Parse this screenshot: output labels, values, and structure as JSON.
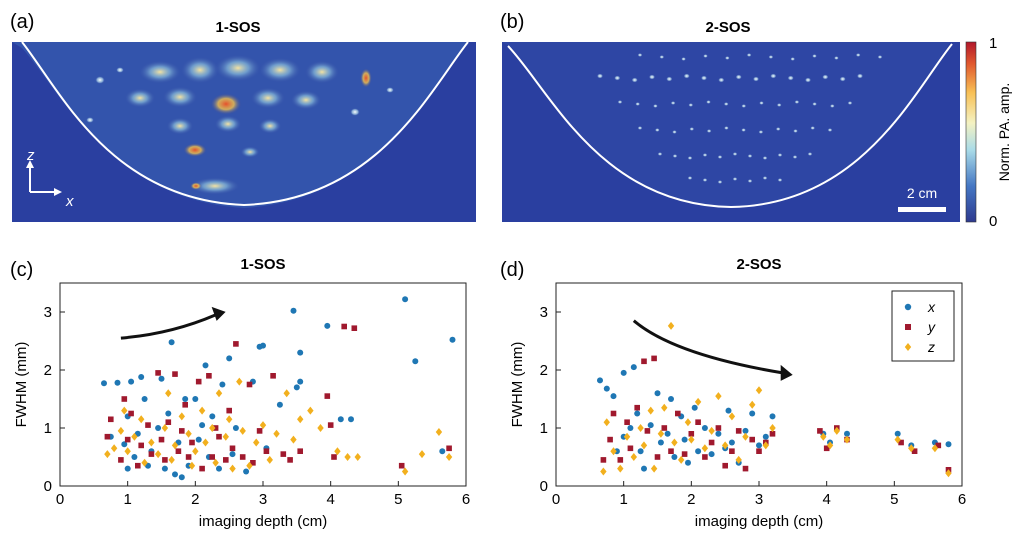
{
  "images": {
    "panel_a": {
      "letter": "(a)",
      "title": "1-SOS"
    },
    "panel_b": {
      "letter": "(b)",
      "title": "2-SOS"
    },
    "direction_z": "z",
    "direction_x": "x",
    "scalebar_label": "2 cm",
    "colorbar": {
      "label": "Norm. PA. amp.",
      "max_label": "1",
      "min_label": "0"
    }
  },
  "colors": {
    "x": "#1f77b4",
    "y": "#a0192e",
    "z": "#f2b01e",
    "bg": "#2a3fa0",
    "boundary": "#ffffff"
  },
  "chart_data": [
    {
      "panel": "(c)",
      "type": "scatter",
      "title": "1-SOS",
      "xlabel": "imaging depth (cm)",
      "ylabel": "FWHM (mm)",
      "xlim": [
        0,
        6
      ],
      "ylim": [
        0,
        3.5
      ],
      "xticks": [
        "0",
        "1",
        "2",
        "3",
        "4",
        "5",
        "6"
      ],
      "yticks": [
        "0",
        "1",
        "2",
        "3"
      ],
      "series": [
        {
          "name": "x",
          "marker": "circle",
          "points": [
            [
              0.65,
              1.77
            ],
            [
              0.75,
              0.85
            ],
            [
              0.85,
              1.78
            ],
            [
              0.95,
              0.72
            ],
            [
              1.0,
              1.2
            ],
            [
              1.0,
              0.3
            ],
            [
              1.05,
              1.8
            ],
            [
              1.1,
              0.5
            ],
            [
              1.15,
              0.9
            ],
            [
              1.2,
              1.88
            ],
            [
              1.25,
              1.5
            ],
            [
              1.3,
              0.35
            ],
            [
              1.35,
              0.6
            ],
            [
              1.45,
              1.0
            ],
            [
              1.5,
              1.85
            ],
            [
              1.55,
              0.3
            ],
            [
              1.6,
              1.25
            ],
            [
              1.65,
              2.48
            ],
            [
              1.7,
              0.2
            ],
            [
              1.75,
              0.75
            ],
            [
              1.8,
              0.15
            ],
            [
              1.85,
              1.5
            ],
            [
              1.9,
              0.35
            ],
            [
              2.0,
              1.5
            ],
            [
              2.05,
              0.8
            ],
            [
              2.1,
              1.05
            ],
            [
              2.15,
              2.08
            ],
            [
              2.2,
              0.5
            ],
            [
              2.25,
              1.2
            ],
            [
              2.35,
              0.3
            ],
            [
              2.4,
              1.75
            ],
            [
              2.5,
              2.2
            ],
            [
              2.55,
              0.55
            ],
            [
              2.6,
              1.0
            ],
            [
              2.75,
              0.25
            ],
            [
              2.85,
              1.8
            ],
            [
              2.95,
              2.4
            ],
            [
              3.0,
              2.42
            ],
            [
              3.05,
              0.65
            ],
            [
              3.25,
              1.4
            ],
            [
              3.45,
              3.02
            ],
            [
              3.5,
              1.7
            ],
            [
              3.55,
              2.3
            ],
            [
              3.55,
              1.8
            ],
            [
              3.95,
              2.76
            ],
            [
              4.15,
              1.15
            ],
            [
              4.3,
              1.15
            ],
            [
              5.1,
              3.22
            ],
            [
              5.25,
              2.15
            ],
            [
              5.8,
              2.52
            ],
            [
              5.65,
              0.6
            ]
          ]
        },
        {
          "name": "y",
          "marker": "square",
          "points": [
            [
              0.7,
              0.85
            ],
            [
              0.75,
              1.15
            ],
            [
              0.9,
              0.45
            ],
            [
              0.95,
              1.5
            ],
            [
              1.0,
              0.8
            ],
            [
              1.05,
              1.25
            ],
            [
              1.15,
              0.35
            ],
            [
              1.2,
              0.7
            ],
            [
              1.3,
              1.05
            ],
            [
              1.35,
              0.55
            ],
            [
              1.45,
              1.95
            ],
            [
              1.5,
              0.8
            ],
            [
              1.55,
              0.45
            ],
            [
              1.6,
              1.1
            ],
            [
              1.7,
              1.93
            ],
            [
              1.75,
              0.6
            ],
            [
              1.8,
              0.95
            ],
            [
              1.85,
              1.4
            ],
            [
              1.9,
              0.5
            ],
            [
              1.95,
              0.75
            ],
            [
              2.05,
              1.8
            ],
            [
              2.1,
              0.3
            ],
            [
              2.2,
              1.9
            ],
            [
              2.25,
              0.5
            ],
            [
              2.3,
              1.0
            ],
            [
              2.35,
              0.85
            ],
            [
              2.45,
              0.45
            ],
            [
              2.5,
              1.3
            ],
            [
              2.55,
              0.65
            ],
            [
              2.6,
              2.45
            ],
            [
              2.7,
              0.5
            ],
            [
              2.8,
              1.75
            ],
            [
              2.85,
              0.4
            ],
            [
              2.95,
              0.95
            ],
            [
              3.05,
              0.6
            ],
            [
              3.15,
              1.9
            ],
            [
              3.3,
              0.55
            ],
            [
              3.4,
              0.45
            ],
            [
              3.55,
              0.6
            ],
            [
              3.95,
              1.55
            ],
            [
              4.0,
              1.05
            ],
            [
              4.05,
              0.5
            ],
            [
              4.2,
              2.75
            ],
            [
              4.35,
              2.72
            ],
            [
              5.05,
              0.35
            ],
            [
              5.75,
              0.65
            ]
          ]
        },
        {
          "name": "z",
          "marker": "diamond",
          "points": [
            [
              0.7,
              0.55
            ],
            [
              0.8,
              0.65
            ],
            [
              0.9,
              0.95
            ],
            [
              0.95,
              1.3
            ],
            [
              1.0,
              0.6
            ],
            [
              1.1,
              0.85
            ],
            [
              1.2,
              1.15
            ],
            [
              1.25,
              0.4
            ],
            [
              1.35,
              0.75
            ],
            [
              1.45,
              0.55
            ],
            [
              1.55,
              1.0
            ],
            [
              1.6,
              1.6
            ],
            [
              1.65,
              0.45
            ],
            [
              1.7,
              0.7
            ],
            [
              1.8,
              1.2
            ],
            [
              1.9,
              0.9
            ],
            [
              1.95,
              0.35
            ],
            [
              2.0,
              0.6
            ],
            [
              2.1,
              1.3
            ],
            [
              2.15,
              0.75
            ],
            [
              2.25,
              1.0
            ],
            [
              2.3,
              0.4
            ],
            [
              2.35,
              1.6
            ],
            [
              2.45,
              0.85
            ],
            [
              2.5,
              1.15
            ],
            [
              2.55,
              0.3
            ],
            [
              2.65,
              1.8
            ],
            [
              2.7,
              0.95
            ],
            [
              2.8,
              0.35
            ],
            [
              2.9,
              0.75
            ],
            [
              3.0,
              1.05
            ],
            [
              3.1,
              0.45
            ],
            [
              3.2,
              0.9
            ],
            [
              3.35,
              1.6
            ],
            [
              3.45,
              0.8
            ],
            [
              3.55,
              1.15
            ],
            [
              3.7,
              1.3
            ],
            [
              3.85,
              1.0
            ],
            [
              4.1,
              0.6
            ],
            [
              4.25,
              0.5
            ],
            [
              4.4,
              0.5
            ],
            [
              5.1,
              0.25
            ],
            [
              5.35,
              0.55
            ],
            [
              5.6,
              0.93
            ],
            [
              5.75,
              0.5
            ]
          ]
        }
      ],
      "annotation": {
        "type": "arrow",
        "direction": "increasing"
      }
    },
    {
      "panel": "(d)",
      "type": "scatter",
      "title": "2-SOS",
      "xlabel": "imaging depth (cm)",
      "ylabel": "FWHM (mm)",
      "xlim": [
        0,
        6
      ],
      "ylim": [
        0,
        3.5
      ],
      "xticks": [
        "0",
        "1",
        "2",
        "3",
        "4",
        "5",
        "6"
      ],
      "yticks": [
        "0",
        "1",
        "2",
        "3"
      ],
      "legend": {
        "position": "top-right",
        "entries": [
          "x",
          "y",
          "z"
        ]
      },
      "series": [
        {
          "name": "x",
          "marker": "circle",
          "points": [
            [
              0.65,
              1.82
            ],
            [
              0.75,
              1.68
            ],
            [
              0.85,
              1.55
            ],
            [
              0.9,
              0.6
            ],
            [
              1.0,
              1.95
            ],
            [
              1.0,
              0.85
            ],
            [
              1.1,
              1.0
            ],
            [
              1.15,
              2.05
            ],
            [
              1.2,
              1.25
            ],
            [
              1.25,
              0.6
            ],
            [
              1.3,
              0.3
            ],
            [
              1.4,
              1.05
            ],
            [
              1.5,
              1.6
            ],
            [
              1.55,
              0.75
            ],
            [
              1.65,
              0.9
            ],
            [
              1.7,
              1.5
            ],
            [
              1.75,
              0.5
            ],
            [
              1.85,
              1.2
            ],
            [
              1.9,
              0.8
            ],
            [
              1.95,
              0.4
            ],
            [
              2.05,
              1.35
            ],
            [
              2.1,
              0.6
            ],
            [
              2.2,
              1.0
            ],
            [
              2.3,
              0.55
            ],
            [
              2.4,
              0.9
            ],
            [
              2.5,
              0.65
            ],
            [
              2.55,
              1.3
            ],
            [
              2.6,
              0.75
            ],
            [
              2.7,
              0.4
            ],
            [
              2.8,
              0.95
            ],
            [
              2.9,
              1.25
            ],
            [
              3.0,
              0.7
            ],
            [
              3.1,
              0.85
            ],
            [
              3.2,
              1.2
            ],
            [
              3.95,
              0.9
            ],
            [
              4.05,
              0.75
            ],
            [
              4.3,
              0.9
            ],
            [
              5.05,
              0.9
            ],
            [
              5.25,
              0.7
            ],
            [
              5.6,
              0.75
            ],
            [
              5.8,
              0.72
            ]
          ]
        },
        {
          "name": "y",
          "marker": "square",
          "points": [
            [
              0.7,
              0.45
            ],
            [
              0.8,
              0.8
            ],
            [
              0.85,
              1.25
            ],
            [
              0.95,
              0.45
            ],
            [
              1.05,
              1.1
            ],
            [
              1.1,
              0.65
            ],
            [
              1.2,
              1.35
            ],
            [
              1.3,
              2.15
            ],
            [
              1.35,
              0.95
            ],
            [
              1.45,
              2.2
            ],
            [
              1.5,
              0.5
            ],
            [
              1.6,
              1.0
            ],
            [
              1.7,
              0.6
            ],
            [
              1.8,
              1.25
            ],
            [
              1.9,
              0.55
            ],
            [
              2.0,
              0.9
            ],
            [
              2.1,
              1.1
            ],
            [
              2.2,
              0.5
            ],
            [
              2.3,
              0.75
            ],
            [
              2.4,
              1.0
            ],
            [
              2.5,
              0.35
            ],
            [
              2.6,
              0.6
            ],
            [
              2.7,
              0.95
            ],
            [
              2.8,
              0.3
            ],
            [
              2.9,
              0.8
            ],
            [
              3.0,
              0.6
            ],
            [
              3.1,
              0.75
            ],
            [
              3.2,
              0.9
            ],
            [
              3.9,
              0.95
            ],
            [
              4.0,
              0.65
            ],
            [
              4.15,
              1.0
            ],
            [
              4.3,
              0.8
            ],
            [
              5.1,
              0.75
            ],
            [
              5.3,
              0.6
            ],
            [
              5.65,
              0.7
            ],
            [
              5.8,
              0.28
            ]
          ]
        },
        {
          "name": "z",
          "marker": "diamond",
          "points": [
            [
              0.7,
              0.25
            ],
            [
              0.75,
              1.1
            ],
            [
              0.85,
              0.6
            ],
            [
              0.95,
              0.3
            ],
            [
              1.05,
              0.85
            ],
            [
              1.15,
              0.5
            ],
            [
              1.25,
              1.0
            ],
            [
              1.3,
              0.7
            ],
            [
              1.4,
              1.3
            ],
            [
              1.45,
              0.3
            ],
            [
              1.55,
              0.9
            ],
            [
              1.6,
              1.35
            ],
            [
              1.7,
              2.76
            ],
            [
              1.75,
              0.75
            ],
            [
              1.85,
              0.45
            ],
            [
              1.95,
              1.1
            ],
            [
              2.0,
              0.8
            ],
            [
              2.1,
              1.45
            ],
            [
              2.2,
              0.65
            ],
            [
              2.3,
              0.95
            ],
            [
              2.4,
              1.55
            ],
            [
              2.5,
              0.7
            ],
            [
              2.6,
              1.2
            ],
            [
              2.7,
              0.45
            ],
            [
              2.8,
              0.85
            ],
            [
              2.9,
              1.4
            ],
            [
              3.0,
              1.65
            ],
            [
              3.1,
              0.7
            ],
            [
              3.2,
              1.0
            ],
            [
              3.95,
              0.85
            ],
            [
              4.05,
              0.7
            ],
            [
              4.15,
              0.95
            ],
            [
              4.3,
              0.8
            ],
            [
              5.05,
              0.8
            ],
            [
              5.25,
              0.65
            ],
            [
              5.6,
              0.65
            ],
            [
              5.8,
              0.22
            ]
          ]
        }
      ],
      "annotation": {
        "type": "arrow",
        "direction": "decreasing"
      }
    }
  ]
}
